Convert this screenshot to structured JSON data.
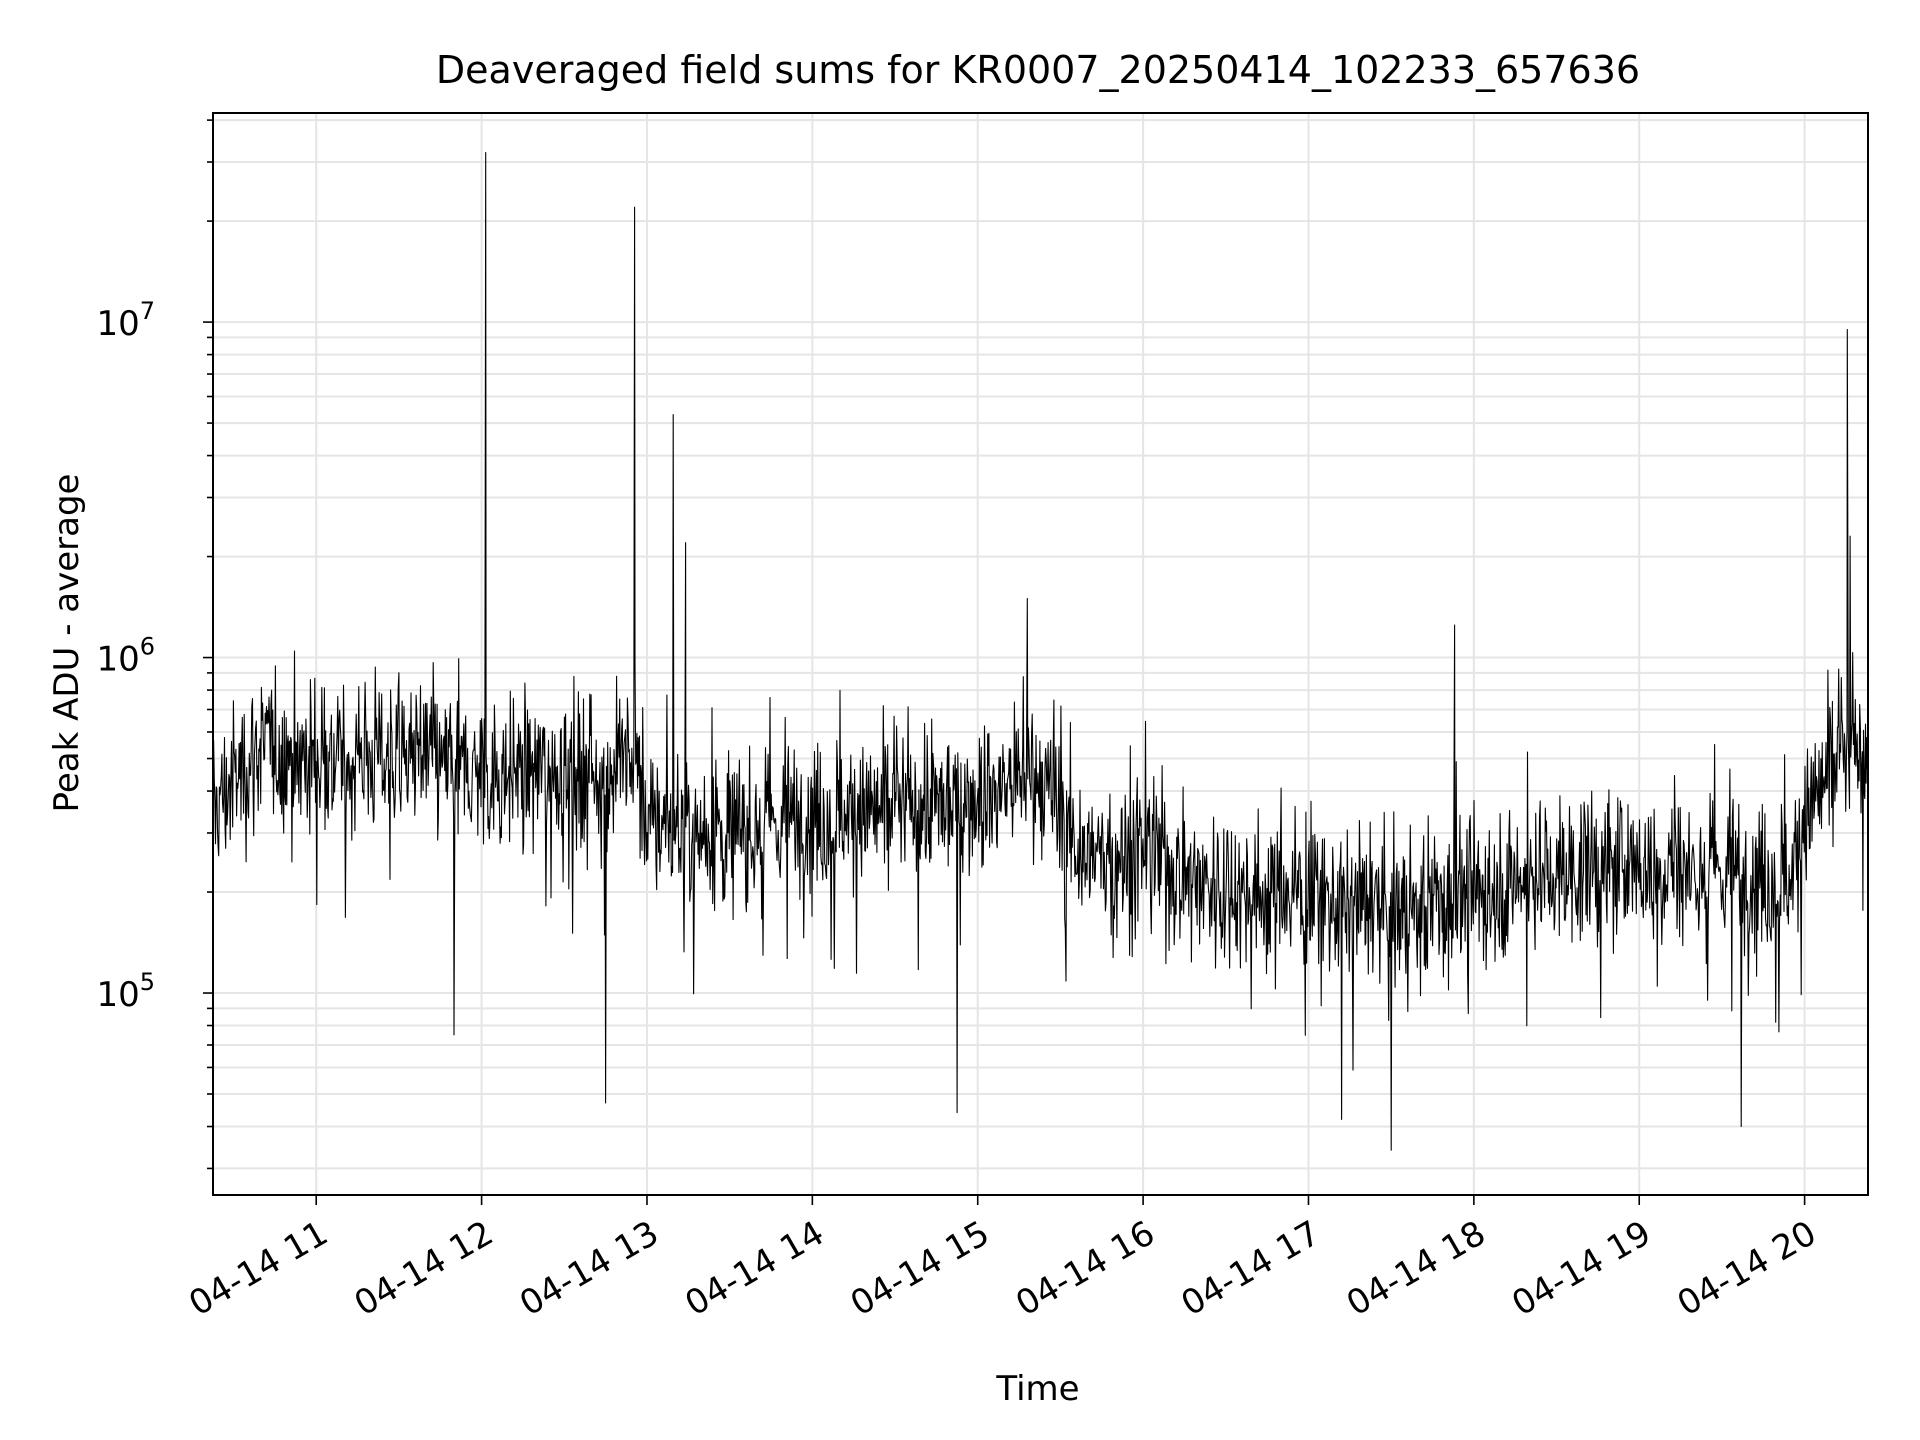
{
  "chart_data": {
    "type": "line",
    "title": "Deaveraged field sums for KR0007_20250414_102233_657636",
    "xlabel": "Time",
    "ylabel": "Peak ADU - average",
    "y_scale": "log",
    "ylim": [
      25000,
      42000000
    ],
    "xlim": [
      "2025-04-14T10:22:33",
      "2025-04-14T20:23:00"
    ],
    "grid": true,
    "x_tick_labels": [
      "04-14 11",
      "04-14 12",
      "04-14 13",
      "04-14 14",
      "04-14 15",
      "04-14 16",
      "04-14 17",
      "04-14 18",
      "04-14 19",
      "04-14 20"
    ],
    "y_tick_labels": [
      {
        "base": "10",
        "exp": "5",
        "value": 100000
      },
      {
        "base": "10",
        "exp": "6",
        "value": 1000000
      },
      {
        "base": "10",
        "exp": "7",
        "value": 10000000
      }
    ],
    "line_color": "#000000",
    "grid_color": "#e5e5e5",
    "series": [
      {
        "x": [
          "2025-04-14T10:22:33",
          "2025-04-14T10:40:00",
          "2025-04-14T10:55:00",
          "2025-04-14T11:00:00",
          "2025-04-14T11:30:00",
          "2025-04-14T12:00:00",
          "2025-04-14T12:30:00",
          "2025-04-14T12:50:00",
          "2025-04-14T12:57:00",
          "2025-04-14T13:00:00",
          "2025-04-14T13:30:00",
          "2025-04-14T14:00:00",
          "2025-04-14T14:30:00",
          "2025-04-14T15:00:00",
          "2025-04-14T15:20:00",
          "2025-04-14T15:40:00",
          "2025-04-14T16:00:00",
          "2025-04-14T16:30:00",
          "2025-04-14T17:00:00",
          "2025-04-14T17:30:00",
          "2025-04-14T18:00:00",
          "2025-04-14T18:30:00",
          "2025-04-14T19:00:00",
          "2025-04-14T19:30:00",
          "2025-04-14T19:55:00",
          "2025-04-14T20:00:00",
          "2025-04-14T20:10:00",
          "2025-04-14T20:23:00"
        ],
        "y": [
          350000,
          550000,
          500000,
          500000,
          520000,
          450000,
          470000,
          460000,
          500000,
          320000,
          300000,
          340000,
          350000,
          380000,
          450000,
          250000,
          260000,
          200000,
          200000,
          170000,
          200000,
          230000,
          240000,
          230000,
          220000,
          330000,
          470000,
          550000
        ]
      }
    ],
    "spikes": [
      {
        "x": "2025-04-14T12:01:30",
        "y": 32000000
      },
      {
        "x": "2025-04-14T12:55:30",
        "y": 22000000
      },
      {
        "x": "2025-04-14T13:09:30",
        "y": 5300000
      },
      {
        "x": "2025-04-14T13:14:00",
        "y": 2200000
      },
      {
        "x": "2025-04-14T20:15:30",
        "y": 9500000
      },
      {
        "x": "2025-04-14T20:16:30",
        "y": 2300000
      },
      {
        "x": "2025-04-14T15:18:00",
        "y": 1500000
      },
      {
        "x": "2025-04-14T17:53:00",
        "y": 1250000
      }
    ],
    "dips": [
      {
        "x": "2025-04-14T12:45:00",
        "y": 47000
      },
      {
        "x": "2025-04-14T14:52:30",
        "y": 44000
      },
      {
        "x": "2025-04-14T17:30:00",
        "y": 34000
      },
      {
        "x": "2025-04-14T17:12:00",
        "y": 42000
      },
      {
        "x": "2025-04-14T11:50:00",
        "y": 75000
      },
      {
        "x": "2025-04-14T19:37:00",
        "y": 40000
      }
    ]
  }
}
